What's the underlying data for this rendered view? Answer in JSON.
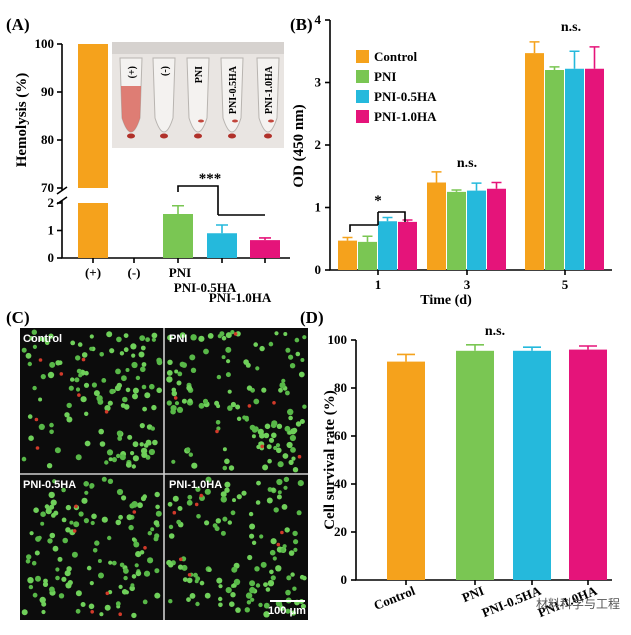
{
  "colors": {
    "control": "#f5a21c",
    "pni": "#7ac653",
    "pni05": "#25b9dc",
    "pni10": "#e5147a"
  },
  "chart_data": [
    {
      "id": "A",
      "panel_label": "(A)",
      "type": "bar",
      "ylabel": "Hemolysis (%)",
      "categories": [
        "(+)",
        "(-)",
        "PNI",
        "PNI-0.5HA",
        "PNI-1.0HA"
      ],
      "values": [
        100,
        0,
        1.6,
        0.9,
        0.65
      ],
      "errors": [
        0,
        0,
        0.3,
        0.3,
        0.08
      ],
      "ylim_lower": [
        0,
        2
      ],
      "ylim_upper": [
        70,
        100
      ],
      "yticks_lower": [
        "0",
        "1",
        "2"
      ],
      "yticks_upper": [
        "70",
        "80",
        "90",
        "100"
      ],
      "significance": "***",
      "inset_tube_labels": [
        "(+)",
        "(-)",
        "PNI",
        "PNI-0.5HA",
        "PNI-1.0HA"
      ]
    },
    {
      "id": "B",
      "panel_label": "(B)",
      "type": "bar",
      "xlabel": "Time (d)",
      "ylabel": "OD (450 nm)",
      "ylim": [
        0,
        4
      ],
      "yticks": [
        "0",
        "1",
        "2",
        "3",
        "4"
      ],
      "categories": [
        "1",
        "3",
        "5"
      ],
      "series": [
        {
          "name": "Control",
          "values": [
            0.47,
            1.4,
            3.47
          ],
          "errors": [
            0.05,
            0.17,
            0.18
          ]
        },
        {
          "name": "PNI",
          "values": [
            0.45,
            1.25,
            3.2
          ],
          "errors": [
            0.09,
            0.03,
            0.05
          ]
        },
        {
          "name": "PNI-0.5HA",
          "values": [
            0.78,
            1.27,
            3.22
          ],
          "errors": [
            0.06,
            0.12,
            0.28
          ]
        },
        {
          "name": "PNI-1.0HA",
          "values": [
            0.77,
            1.3,
            3.22
          ],
          "errors": [
            0.03,
            0.1,
            0.35
          ]
        }
      ],
      "annotations": [
        "*",
        "n.s.",
        "n.s."
      ],
      "legend": "top-left"
    },
    {
      "id": "D",
      "panel_label": "(D)",
      "type": "bar",
      "ylabel": "Cell survival rate (%)",
      "ylim": [
        0,
        100
      ],
      "yticks": [
        "0",
        "20",
        "40",
        "60",
        "80",
        "100"
      ],
      "categories": [
        "Control",
        "PNI",
        "PNI-0.5HA",
        "PNI-1.0HA"
      ],
      "values": [
        91,
        95.5,
        95.5,
        96
      ],
      "errors": [
        3,
        2.5,
        1.5,
        1.5
      ],
      "annotation": "n.s."
    }
  ],
  "micrograph": {
    "panel_label": "(C)",
    "quadrants": [
      "Control",
      "PNI",
      "PNI-0.5HA",
      "PNI-1.0HA"
    ],
    "scale_bar": "100 μm"
  },
  "watermark": "材料科学与工程"
}
